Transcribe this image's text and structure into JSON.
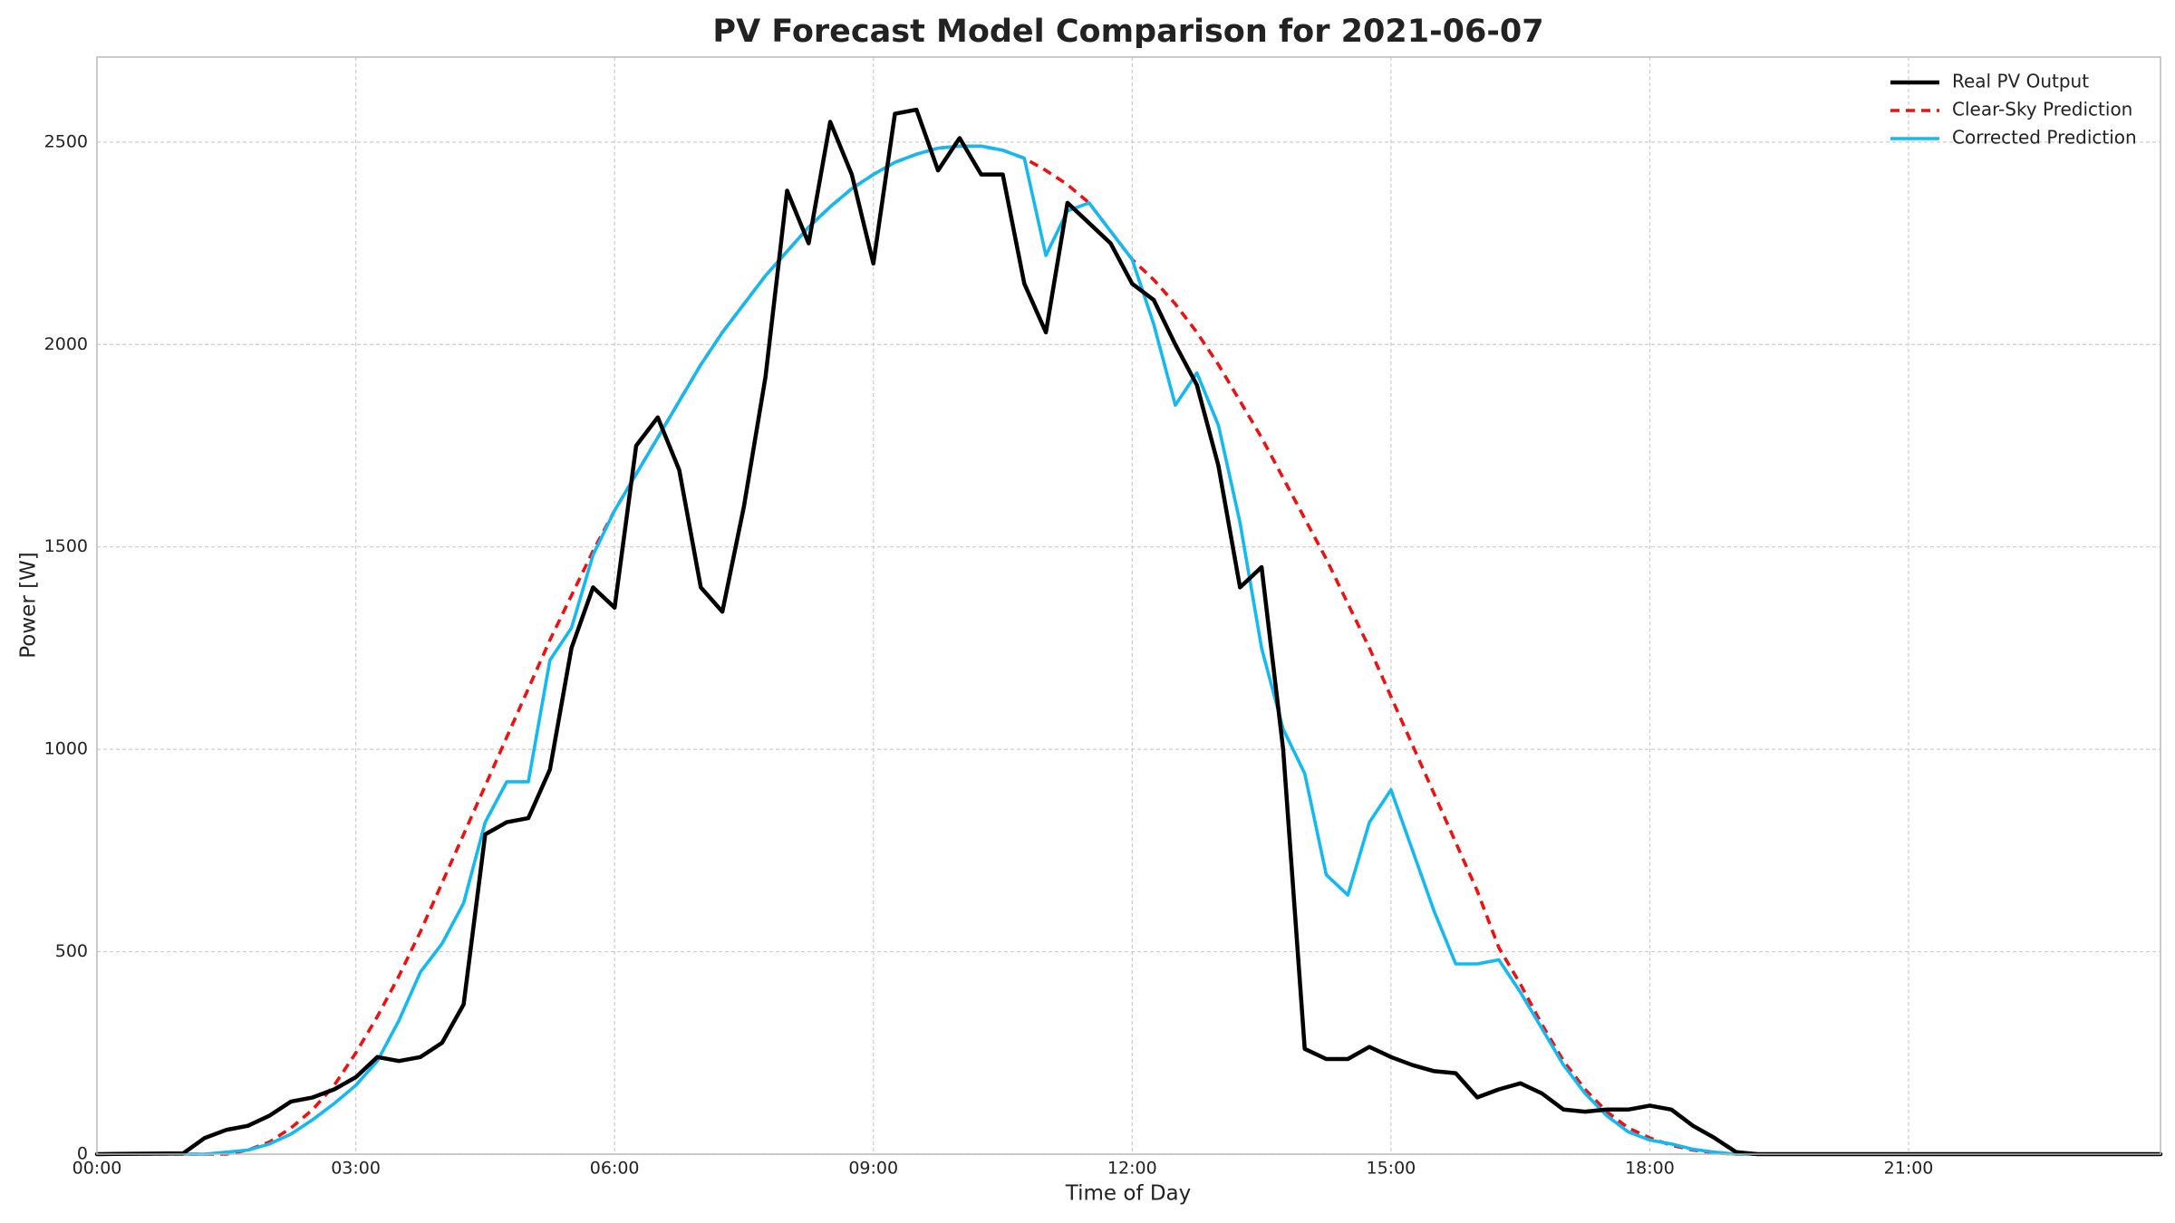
{
  "chart_data": {
    "type": "line",
    "title": "PV Forecast Model Comparison for 2021-06-07",
    "x_label": "Time of Day",
    "y_label": "Power [W]",
    "x": [
      0,
      1,
      1.25,
      1.5,
      1.75,
      2,
      2.25,
      2.5,
      2.75,
      3,
      3.25,
      3.5,
      3.75,
      4,
      4.25,
      4.5,
      4.75,
      5,
      5.25,
      5.5,
      5.75,
      6,
      6.25,
      6.5,
      6.75,
      7,
      7.25,
      7.5,
      7.75,
      8,
      8.25,
      8.5,
      8.75,
      9,
      9.25,
      9.5,
      9.75,
      10,
      10.25,
      10.5,
      10.75,
      11,
      11.25,
      11.5,
      11.75,
      12,
      12.25,
      12.5,
      12.75,
      13,
      13.25,
      13.5,
      13.75,
      14,
      14.25,
      14.5,
      14.75,
      15,
      15.25,
      15.5,
      15.75,
      16,
      16.25,
      16.5,
      16.75,
      17,
      17.25,
      17.5,
      17.75,
      18,
      18.25,
      18.5,
      18.75,
      19,
      19.25,
      19.5,
      23.92
    ],
    "series": [
      {
        "name": "Real PV Output",
        "color": "#000000",
        "style": "solid",
        "values": [
          0,
          2,
          40,
          60,
          70,
          95,
          130,
          140,
          160,
          190,
          240,
          230,
          240,
          275,
          370,
          790,
          820,
          830,
          950,
          1250,
          1400,
          1350,
          1750,
          1820,
          1690,
          1400,
          1340,
          1600,
          1920,
          2380,
          2250,
          2550,
          2420,
          2200,
          2570,
          2580,
          2430,
          2510,
          2420,
          2420,
          2150,
          2030,
          2350,
          2300,
          2250,
          2150,
          2110,
          2000,
          1900,
          1700,
          1400,
          1450,
          1000,
          260,
          235,
          235,
          265,
          240,
          220,
          205,
          200,
          140,
          160,
          175,
          150,
          110,
          105,
          110,
          110,
          120,
          110,
          70,
          40,
          5,
          0,
          0,
          0
        ]
      },
      {
        "name": "Clear-Sky Prediction",
        "color": "#ee1111",
        "style": "dashed",
        "values": [
          0,
          0,
          0,
          0,
          10,
          30,
          65,
          110,
          170,
          250,
          340,
          440,
          550,
          670,
          790,
          910,
          1030,
          1150,
          1270,
          1380,
          1490,
          1590,
          1680,
          1770,
          1860,
          1950,
          2030,
          2100,
          2170,
          2230,
          2290,
          2340,
          2385,
          2420,
          2450,
          2470,
          2485,
          2490,
          2490,
          2480,
          2460,
          2430,
          2395,
          2350,
          2280,
          2210,
          2160,
          2100,
          2030,
          1950,
          1860,
          1770,
          1670,
          1570,
          1470,
          1360,
          1250,
          1130,
          1010,
          890,
          770,
          650,
          510,
          420,
          320,
          230,
          160,
          105,
          65,
          40,
          22,
          10,
          3,
          0,
          0,
          0,
          0
        ]
      },
      {
        "name": "Corrected Prediction",
        "color": "#13b9f0",
        "style": "solid",
        "values": [
          0,
          0,
          0,
          5,
          10,
          25,
          50,
          85,
          125,
          170,
          230,
          330,
          450,
          520,
          620,
          820,
          920,
          920,
          1220,
          1300,
          1480,
          1590,
          1680,
          1770,
          1860,
          1950,
          2030,
          2100,
          2170,
          2230,
          2290,
          2340,
          2385,
          2420,
          2450,
          2470,
          2485,
          2490,
          2490,
          2480,
          2460,
          2220,
          2330,
          2350,
          2280,
          2210,
          2050,
          1850,
          1930,
          1800,
          1560,
          1250,
          1050,
          940,
          690,
          640,
          820,
          900,
          750,
          600,
          470,
          470,
          480,
          400,
          310,
          220,
          150,
          95,
          55,
          35,
          25,
          12,
          5,
          0,
          0,
          0,
          0
        ]
      }
    ],
    "xlim": [
      0,
      23.92
    ],
    "ylim": [
      0,
      2710
    ],
    "xticks": [
      {
        "value": 0,
        "label": "00:00"
      },
      {
        "value": 3,
        "label": "03:00"
      },
      {
        "value": 6,
        "label": "06:00"
      },
      {
        "value": 9,
        "label": "09:00"
      },
      {
        "value": 12,
        "label": "12:00"
      },
      {
        "value": 15,
        "label": "15:00"
      },
      {
        "value": 18,
        "label": "18:00"
      },
      {
        "value": 21,
        "label": "21:00"
      }
    ],
    "yticks": [
      0,
      500,
      1000,
      1500,
      2000,
      2500
    ],
    "grid": true,
    "legend": "upper right"
  }
}
